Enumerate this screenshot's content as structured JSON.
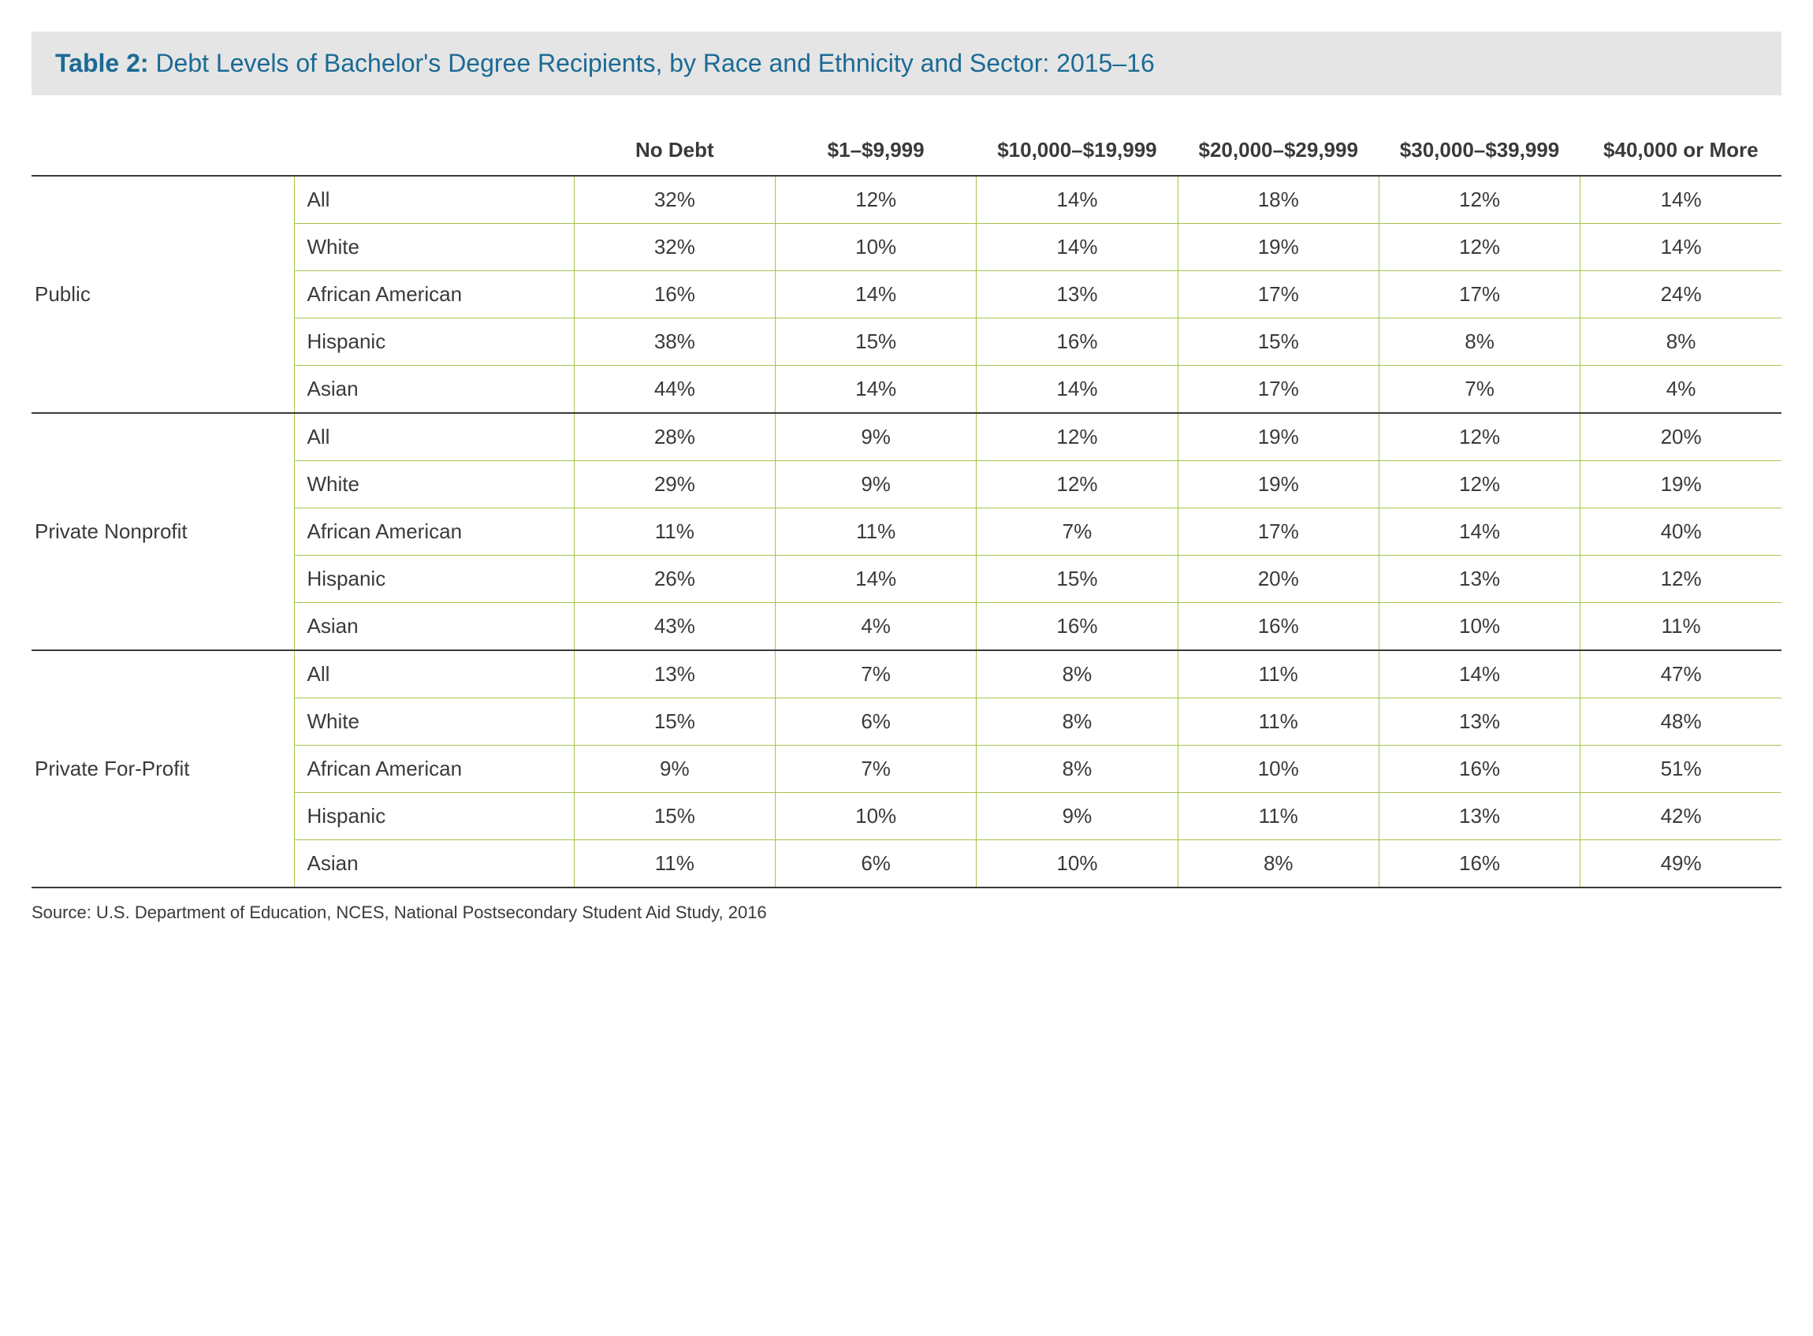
{
  "title": {
    "label_bold": "Table 2:",
    "label_rest": " Debt Levels of Bachelor's Degree Recipients, by Race and Ethnicity and Sector: 2015–16"
  },
  "columns": [
    "No Debt",
    "$1–$9,999",
    "$10,000–$19,999",
    "$20,000–$29,999",
    "$30,000–$39,999",
    "$40,000 or More"
  ],
  "sectors": [
    {
      "name": "Public",
      "rows": [
        {
          "race": "All",
          "values": [
            "32%",
            "12%",
            "14%",
            "18%",
            "12%",
            "14%"
          ]
        },
        {
          "race": "White",
          "values": [
            "32%",
            "10%",
            "14%",
            "19%",
            "12%",
            "14%"
          ]
        },
        {
          "race": "African American",
          "values": [
            "16%",
            "14%",
            "13%",
            "17%",
            "17%",
            "24%"
          ]
        },
        {
          "race": "Hispanic",
          "values": [
            "38%",
            "15%",
            "16%",
            "15%",
            "8%",
            "8%"
          ]
        },
        {
          "race": "Asian",
          "values": [
            "44%",
            "14%",
            "14%",
            "17%",
            "7%",
            "4%"
          ]
        }
      ]
    },
    {
      "name": "Private Nonprofit",
      "rows": [
        {
          "race": "All",
          "values": [
            "28%",
            "9%",
            "12%",
            "19%",
            "12%",
            "20%"
          ]
        },
        {
          "race": "White",
          "values": [
            "29%",
            "9%",
            "12%",
            "19%",
            "12%",
            "19%"
          ]
        },
        {
          "race": "African American",
          "values": [
            "11%",
            "11%",
            "7%",
            "17%",
            "14%",
            "40%"
          ]
        },
        {
          "race": "Hispanic",
          "values": [
            "26%",
            "14%",
            "15%",
            "20%",
            "13%",
            "12%"
          ]
        },
        {
          "race": "Asian",
          "values": [
            "43%",
            "4%",
            "16%",
            "16%",
            "10%",
            "11%"
          ]
        }
      ]
    },
    {
      "name": "Private For-Profit",
      "rows": [
        {
          "race": "All",
          "values": [
            "13%",
            "7%",
            "8%",
            "11%",
            "14%",
            "47%"
          ]
        },
        {
          "race": "White",
          "values": [
            "15%",
            "6%",
            "8%",
            "11%",
            "13%",
            "48%"
          ]
        },
        {
          "race": "African American",
          "values": [
            "9%",
            "7%",
            "8%",
            "10%",
            "16%",
            "51%"
          ]
        },
        {
          "race": "Hispanic",
          "values": [
            "15%",
            "10%",
            "9%",
            "11%",
            "13%",
            "42%"
          ]
        },
        {
          "race": "Asian",
          "values": [
            "11%",
            "6%",
            "10%",
            "8%",
            "16%",
            "49%"
          ]
        }
      ]
    }
  ],
  "source": "Source: U.S. Department of Education, NCES, National Postsecondary Student Aid Study, 2016",
  "colors": {
    "title_bg": "#e5e5e5",
    "title_text": "#1b6a94",
    "row_border": "#a4c64b",
    "group_border": "#3a3a3a",
    "text": "#3a3a3a"
  },
  "fontsize": {
    "title": 32,
    "cell": 26,
    "source": 22
  }
}
